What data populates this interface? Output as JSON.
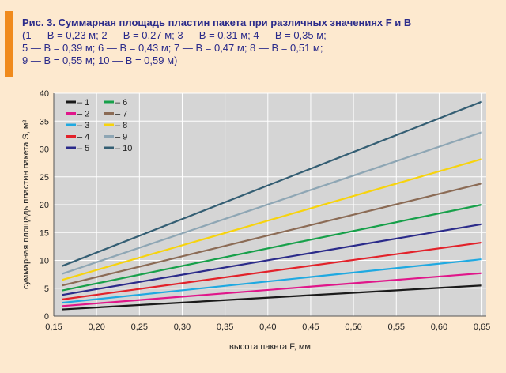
{
  "caption": {
    "title": "Рис. 3. Суммарная площадь пластин пакета при различных значениях F и B",
    "line1": "(1 — B = 0,23 м; 2 — B = 0,27 м; 3 — B = 0,31 м; 4 — B = 0,35 м;",
    "line2": "5 — B = 0,39 м; 6 — B = 0,43 м; 7 — B = 0,47 м; 8 — B = 0,51 м;",
    "line3": "9 — B = 0,55 м; 10 — B = 0,59 м)"
  },
  "colors": {
    "page_background": "#fde9cf",
    "accent": "#f08a1c",
    "caption_text": "#2b2b8a",
    "plot_background": "#d5d5d5",
    "grid": "#ffffff"
  },
  "chart_data": {
    "type": "line",
    "xlabel": "высота пакета F, мм",
    "ylabel": "суммарная площадь пластин пакета S, м²",
    "xlim": [
      0.15,
      0.655
    ],
    "ylim": [
      0,
      40
    ],
    "xticks": [
      0.15,
      0.2,
      0.25,
      0.3,
      0.35,
      0.4,
      0.45,
      0.5,
      0.55,
      0.6,
      0.65
    ],
    "xtick_labels": [
      "0,15",
      "0,20",
      "0,25",
      "0,30",
      "0,35",
      "0,40",
      "0,45",
      "0,50",
      "0,55",
      "0,60",
      "0,65"
    ],
    "yticks": [
      0,
      5,
      10,
      15,
      20,
      25,
      30,
      35,
      40
    ],
    "ytick_labels": [
      "0",
      "5",
      "10",
      "15",
      "20",
      "25",
      "30",
      "35",
      "40"
    ],
    "grid": true,
    "legend_position": "top-left",
    "series": [
      {
        "name": "1",
        "legend": "– 1",
        "color": "#1a1a1a",
        "x": [
          0.16,
          0.65
        ],
        "y": [
          1.2,
          5.5
        ]
      },
      {
        "name": "2",
        "legend": "– 2",
        "color": "#e0168a",
        "x": [
          0.16,
          0.65
        ],
        "y": [
          1.8,
          7.7
        ]
      },
      {
        "name": "3",
        "legend": "– 3",
        "color": "#1fa9e1",
        "x": [
          0.16,
          0.65
        ],
        "y": [
          2.4,
          10.2
        ]
      },
      {
        "name": "4",
        "legend": "– 4",
        "color": "#e2222a",
        "x": [
          0.16,
          0.65
        ],
        "y": [
          3.0,
          13.2
        ]
      },
      {
        "name": "5",
        "legend": "– 5",
        "color": "#2b2b8a",
        "x": [
          0.16,
          0.65
        ],
        "y": [
          3.8,
          16.5
        ]
      },
      {
        "name": "6",
        "legend": "– 6",
        "color": "#17a04a",
        "x": [
          0.16,
          0.65
        ],
        "y": [
          4.6,
          20.0
        ]
      },
      {
        "name": "7",
        "legend": "– 7",
        "color": "#8b6b55",
        "x": [
          0.16,
          0.65
        ],
        "y": [
          5.5,
          23.8
        ]
      },
      {
        "name": "8",
        "legend": "– 8",
        "color": "#f7d30c",
        "x": [
          0.16,
          0.65
        ],
        "y": [
          6.5,
          28.2
        ]
      },
      {
        "name": "9",
        "legend": "– 9",
        "color": "#8ea6b4",
        "x": [
          0.16,
          0.65
        ],
        "y": [
          7.6,
          33.0
        ]
      },
      {
        "name": "10",
        "legend": "– 10",
        "color": "#345e73",
        "x": [
          0.16,
          0.65
        ],
        "y": [
          9.0,
          38.5
        ]
      }
    ]
  }
}
